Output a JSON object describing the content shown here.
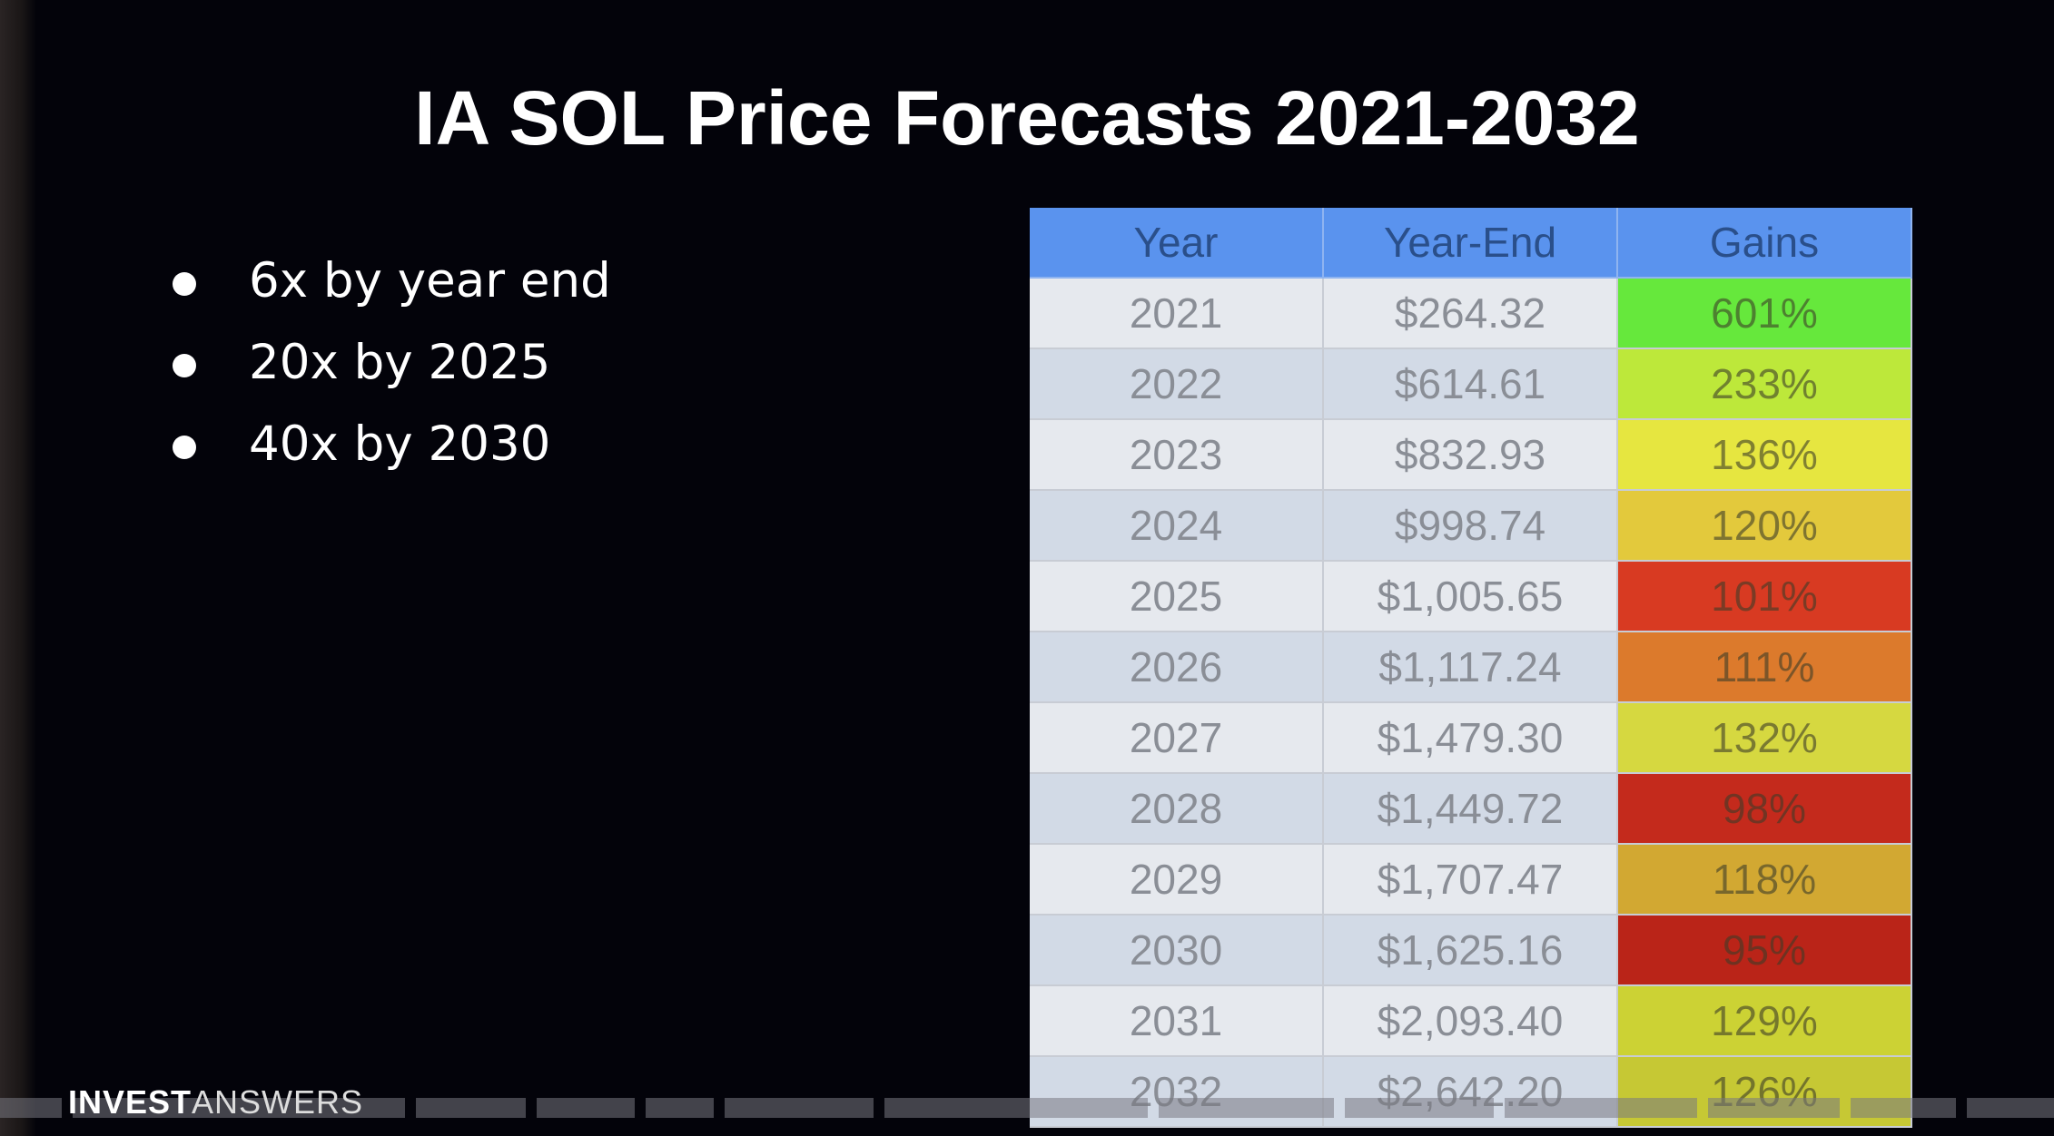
{
  "title": "IA SOL Price Forecasts 2021-2032",
  "bullets": [
    "6x by year end",
    "20x by 2025",
    "40x by 2030"
  ],
  "table": {
    "headers": [
      "Year",
      "Year-End",
      "Gains"
    ],
    "rows": [
      {
        "year": "2021",
        "price": "$264.32",
        "gain": "601%",
        "color": "#66e83c"
      },
      {
        "year": "2022",
        "price": "$614.61",
        "gain": "233%",
        "color": "#bde83a"
      },
      {
        "year": "2023",
        "price": "$832.93",
        "gain": "136%",
        "color": "#e6e640"
      },
      {
        "year": "2024",
        "price": "$998.74",
        "gain": "120%",
        "color": "#e3c93c"
      },
      {
        "year": "2025",
        "price": "$1,005.65",
        "gain": "101%",
        "color": "#d83a22"
      },
      {
        "year": "2026",
        "price": "$1,117.24",
        "gain": "111%",
        "color": "#dc7a2c"
      },
      {
        "year": "2027",
        "price": "$1,479.30",
        "gain": "132%",
        "color": "#d6d840"
      },
      {
        "year": "2028",
        "price": "$1,449.72",
        "gain": "98%",
        "color": "#c42a1c"
      },
      {
        "year": "2029",
        "price": "$1,707.47",
        "gain": "118%",
        "color": "#d2a832"
      },
      {
        "year": "2030",
        "price": "$1,625.16",
        "gain": "95%",
        "color": "#ba2418"
      },
      {
        "year": "2031",
        "price": "$2,093.40",
        "gain": "129%",
        "color": "#ccd234"
      },
      {
        "year": "2032",
        "price": "$2,642.20",
        "gain": "126%",
        "color": "#c6c834"
      }
    ]
  },
  "logo": {
    "bold": "INVEST",
    "light": "ANSWERS"
  }
}
